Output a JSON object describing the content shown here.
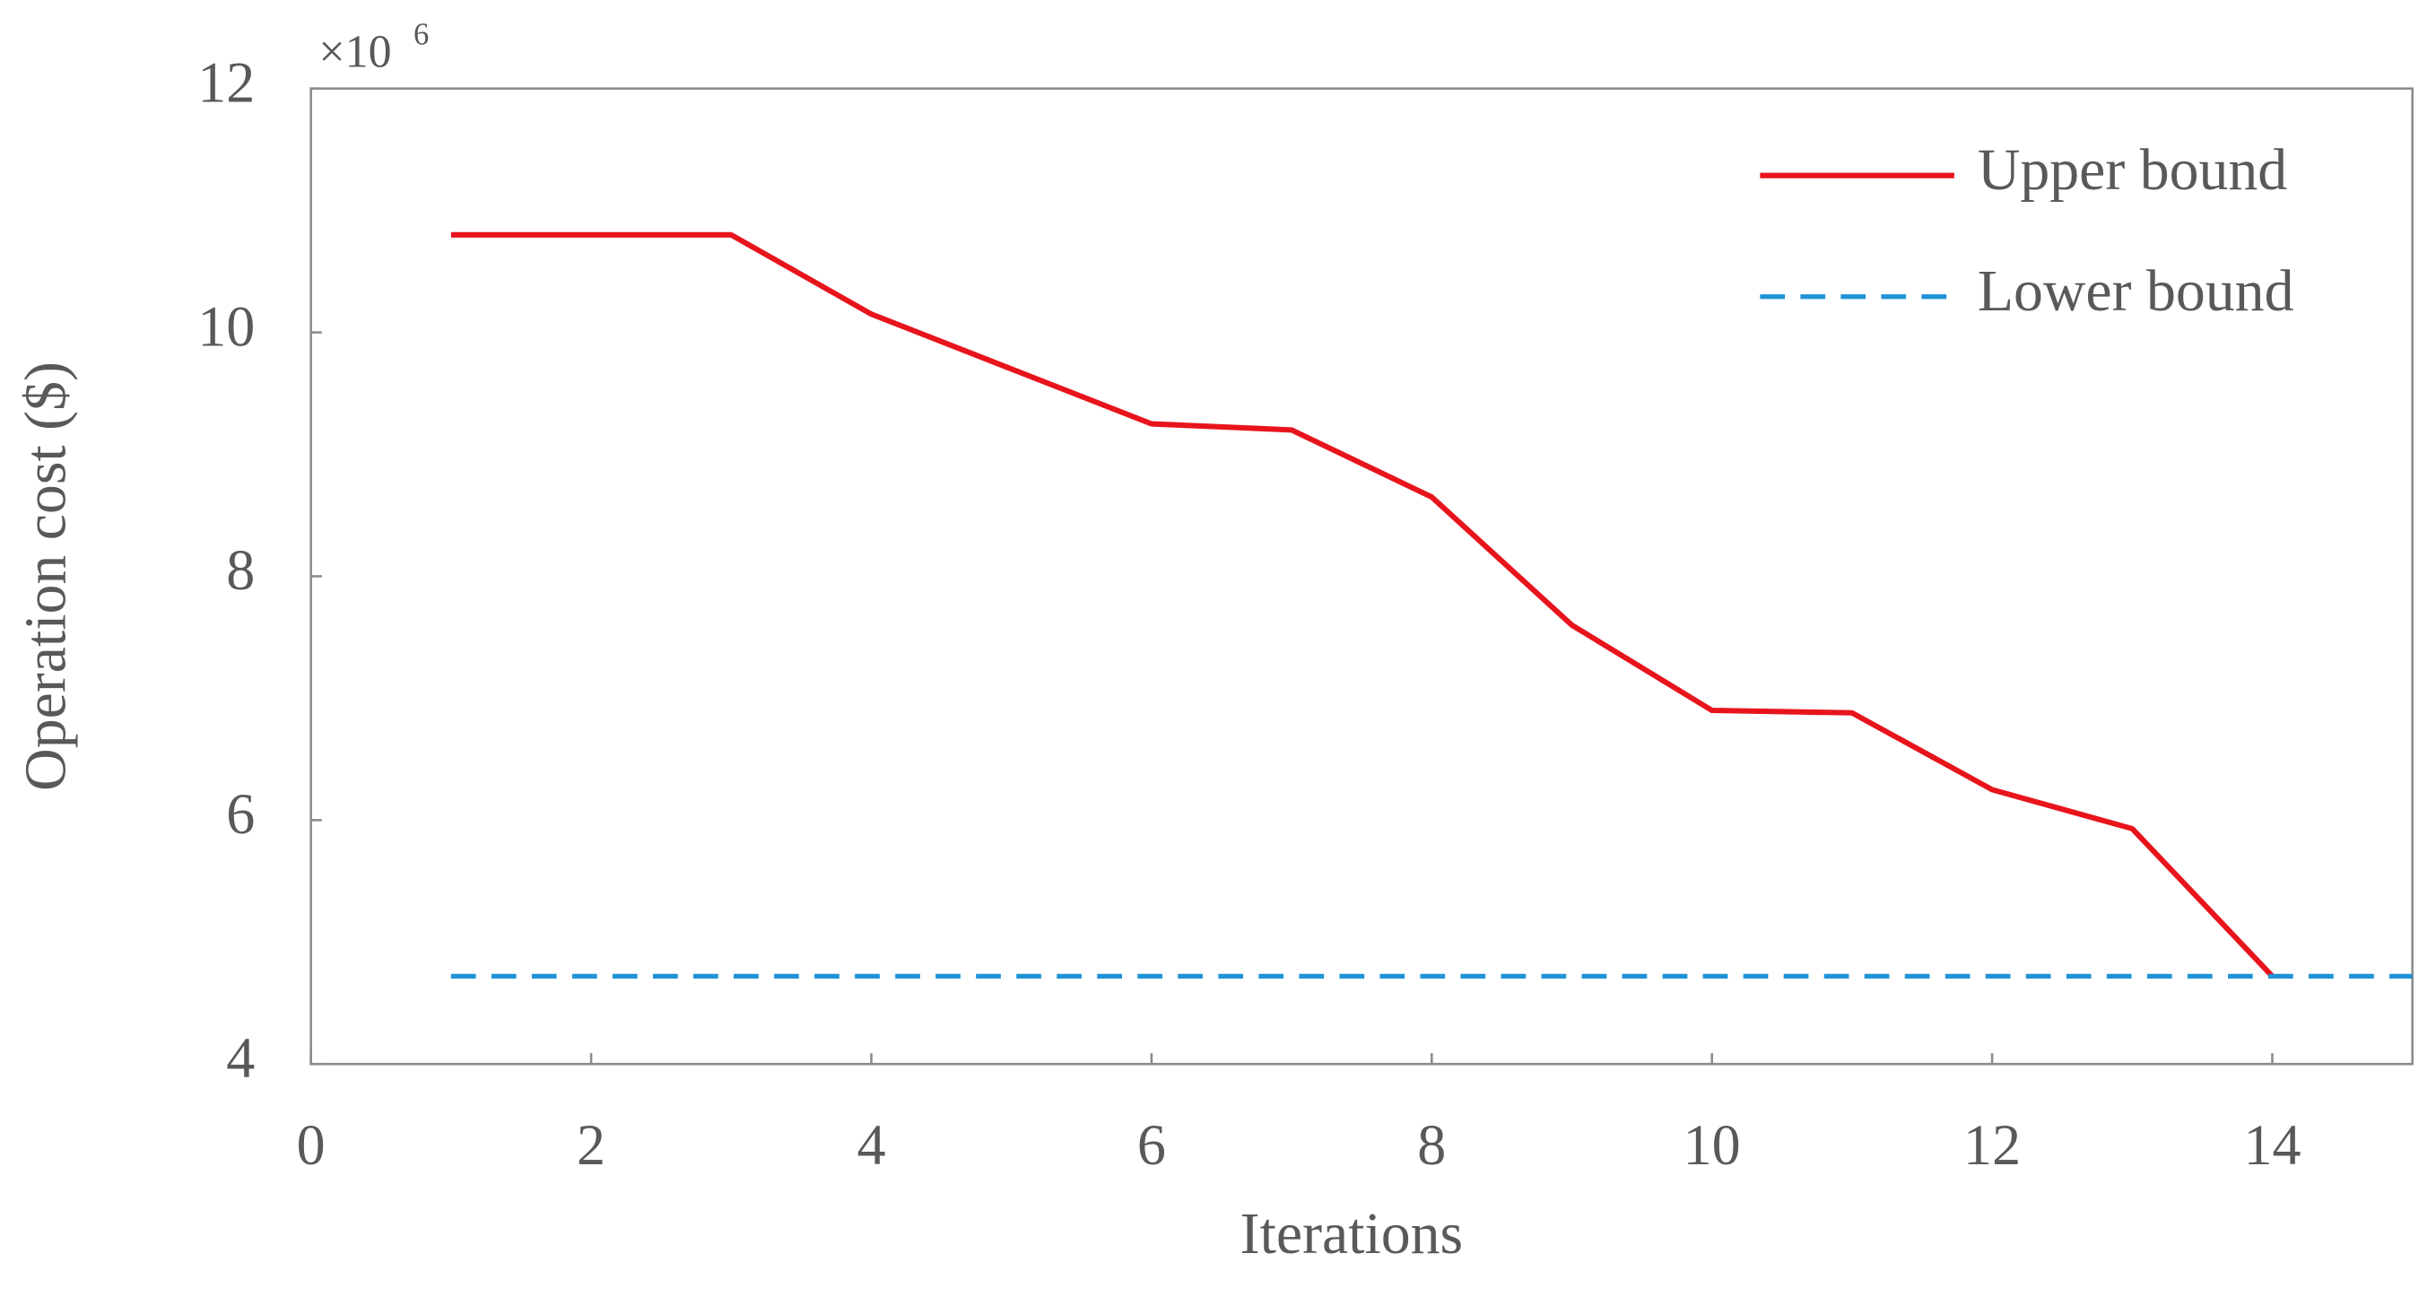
{
  "chart_data": {
    "type": "line",
    "x_label": "Iterations",
    "y_label": "Operation cost ($)",
    "y_multiplier": "×10",
    "y_multiplier_exponent": "6",
    "xlim": [
      0,
      15
    ],
    "xticks": [
      0,
      2,
      4,
      6,
      8,
      10,
      12,
      14
    ],
    "ylim": [
      4,
      12
    ],
    "yticks": [
      4,
      6,
      8,
      10,
      12
    ],
    "legend": "upper right",
    "series": [
      {
        "name": "Upper bound",
        "color": "#e8141c",
        "dash": false,
        "x": [
          1,
          2,
          3,
          4,
          5,
          6,
          7,
          8,
          9,
          10,
          11,
          12,
          13,
          14
        ],
        "values": [
          10.8,
          10.8,
          10.8,
          10.15,
          9.7,
          9.25,
          9.2,
          8.65,
          7.6,
          6.9,
          6.88,
          6.25,
          5.93,
          4.72
        ]
      },
      {
        "name": "Lower bound",
        "color": "#1f93d6",
        "dash": true,
        "x": [
          1,
          15
        ],
        "values": [
          4.72,
          4.72
        ]
      }
    ]
  }
}
